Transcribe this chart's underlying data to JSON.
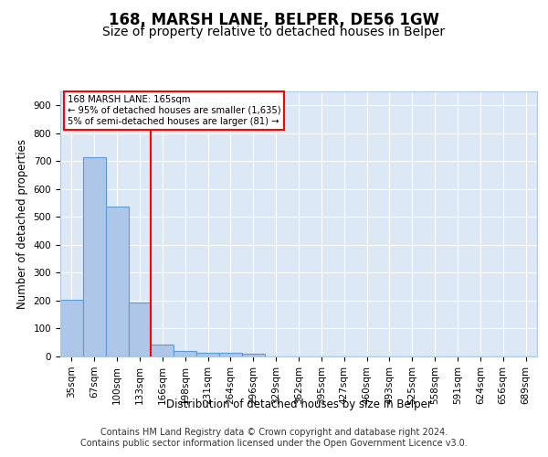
{
  "title": "168, MARSH LANE, BELPER, DE56 1GW",
  "subtitle": "Size of property relative to detached houses in Belper",
  "xlabel": "Distribution of detached houses by size in Belper",
  "ylabel": "Number of detached properties",
  "footer_line1": "Contains HM Land Registry data © Crown copyright and database right 2024.",
  "footer_line2": "Contains public sector information licensed under the Open Government Licence v3.0.",
  "bar_labels": [
    "35sqm",
    "67sqm",
    "100sqm",
    "133sqm",
    "166sqm",
    "198sqm",
    "231sqm",
    "264sqm",
    "296sqm",
    "329sqm",
    "362sqm",
    "395sqm",
    "427sqm",
    "460sqm",
    "493sqm",
    "525sqm",
    "558sqm",
    "591sqm",
    "624sqm",
    "656sqm",
    "689sqm"
  ],
  "bar_values": [
    202,
    715,
    536,
    193,
    42,
    20,
    14,
    12,
    9,
    0,
    0,
    0,
    0,
    0,
    0,
    0,
    0,
    0,
    0,
    0,
    0
  ],
  "bar_color": "#aec6e8",
  "bar_edge_color": "#5b9bd5",
  "ylim": [
    0,
    950
  ],
  "yticks": [
    0,
    100,
    200,
    300,
    400,
    500,
    600,
    700,
    800,
    900
  ],
  "annotation_line1": "168 MARSH LANE: 165sqm",
  "annotation_line2": "← 95% of detached houses are smaller (1,635)",
  "annotation_line3": "5% of semi-detached houses are larger (81) →",
  "background_color": "#dce8f5",
  "grid_color": "#ffffff",
  "title_fontsize": 12,
  "subtitle_fontsize": 10,
  "axis_label_fontsize": 8.5,
  "tick_fontsize": 7.5,
  "footer_fontsize": 7
}
